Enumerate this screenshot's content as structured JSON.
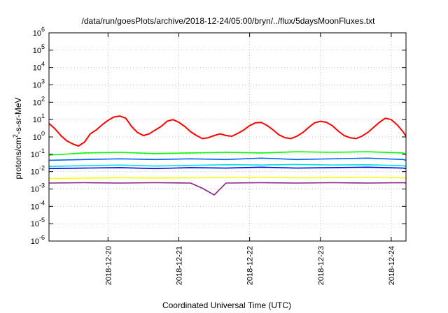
{
  "chart_data": {
    "type": "line",
    "title": "/data/run/goesPlots/archive/2018-12-24/05:00/bryn/../flux/5daysMoonFluxes.txt",
    "xlabel": "Coordinated Universal Time (UTC)",
    "ylabel": [
      "protons/cm",
      "2",
      "-s-sr-MeV"
    ],
    "yscale": "log",
    "ylim": [
      1e-06,
      1000000.0
    ],
    "xlim": [
      "2018-12-19T04:00",
      "2018-12-24T05:00"
    ],
    "y_ticks": [
      {
        "base": "10",
        "exp": "-6",
        "value": 1e-06
      },
      {
        "base": "10",
        "exp": "-5",
        "value": 1e-05
      },
      {
        "base": "10",
        "exp": "-4",
        "value": 0.0001
      },
      {
        "base": "10",
        "exp": "-3",
        "value": 0.001
      },
      {
        "base": "10",
        "exp": "-2",
        "value": 0.01
      },
      {
        "base": "10",
        "exp": "-1",
        "value": 0.1
      },
      {
        "base": "10",
        "exp": "0",
        "value": 1.0
      },
      {
        "base": "10",
        "exp": "1",
        "value": 10.0
      },
      {
        "base": "10",
        "exp": "2",
        "value": 100.0
      },
      {
        "base": "10",
        "exp": "3",
        "value": 1000.0
      },
      {
        "base": "10",
        "exp": "4",
        "value": 10000.0
      },
      {
        "base": "10",
        "exp": "5",
        "value": 100000.0
      },
      {
        "base": "10",
        "exp": "6",
        "value": 1000000.0
      }
    ],
    "x_ticks": [
      "2018-12-20",
      "2018-12-21",
      "2018-12-22",
      "2018-12-23",
      "2018-12-24"
    ],
    "grid": true,
    "legend": "none",
    "series": [
      {
        "color": "#ff0000",
        "x": [
          "2018-12-19T04:00",
          "2018-12-19T06:00",
          "2018-12-19T08:00",
          "2018-12-19T10:00",
          "2018-12-19T12:00",
          "2018-12-19T14:00",
          "2018-12-19T16:00",
          "2018-12-19T18:00",
          "2018-12-19T20:00",
          "2018-12-19T22:00",
          "2018-12-20T00:00",
          "2018-12-20T02:00",
          "2018-12-20T04:00",
          "2018-12-20T06:00",
          "2018-12-20T08:00",
          "2018-12-20T10:00",
          "2018-12-20T12:00",
          "2018-12-20T14:00",
          "2018-12-20T16:00",
          "2018-12-20T18:00",
          "2018-12-20T20:00",
          "2018-12-20T22:00",
          "2018-12-21T00:00",
          "2018-12-21T02:00",
          "2018-12-21T04:00",
          "2018-12-21T06:00",
          "2018-12-21T08:00",
          "2018-12-21T10:00",
          "2018-12-21T12:00",
          "2018-12-21T14:00",
          "2018-12-21T16:00",
          "2018-12-21T18:00",
          "2018-12-21T20:00",
          "2018-12-21T22:00",
          "2018-12-22T00:00",
          "2018-12-22T02:00",
          "2018-12-22T04:00",
          "2018-12-22T06:00",
          "2018-12-22T08:00",
          "2018-12-22T10:00",
          "2018-12-22T12:00",
          "2018-12-22T14:00",
          "2018-12-22T16:00",
          "2018-12-22T18:00",
          "2018-12-22T20:00",
          "2018-12-22T22:00",
          "2018-12-23T00:00",
          "2018-12-23T02:00",
          "2018-12-23T04:00",
          "2018-12-23T06:00",
          "2018-12-23T08:00",
          "2018-12-23T10:00",
          "2018-12-23T12:00",
          "2018-12-23T14:00",
          "2018-12-23T16:00",
          "2018-12-23T18:00",
          "2018-12-23T20:00",
          "2018-12-23T22:00",
          "2018-12-24T00:00",
          "2018-12-24T02:00",
          "2018-12-24T04:00",
          "2018-12-24T05:00"
        ],
        "y": [
          6,
          3,
          1.2,
          0.6,
          0.4,
          0.3,
          0.5,
          1.5,
          2.5,
          5,
          9,
          14,
          16,
          12,
          4,
          1.8,
          1.2,
          1.5,
          2.5,
          4,
          8,
          10,
          7,
          4,
          2,
          1.2,
          0.8,
          0.9,
          1.2,
          1.5,
          1.2,
          1.1,
          1.6,
          2.5,
          4.5,
          6.5,
          6.8,
          4.5,
          2.5,
          1.3,
          0.9,
          0.8,
          1.1,
          1.8,
          3.5,
          6.5,
          8,
          7,
          4.5,
          2.2,
          1.2,
          0.9,
          0.8,
          1.1,
          1.8,
          3.5,
          7,
          12,
          10,
          5,
          2,
          1.1
        ]
      },
      {
        "color": "#00ff00",
        "x": [
          "2018-12-19T04:00",
          "2018-12-19T16:00",
          "2018-12-20T04:00",
          "2018-12-20T16:00",
          "2018-12-21T04:00",
          "2018-12-21T16:00",
          "2018-12-22T04:00",
          "2018-12-22T16:00",
          "2018-12-23T04:00",
          "2018-12-23T16:00",
          "2018-12-24T04:00",
          "2018-12-24T05:00"
        ],
        "y": [
          0.09,
          0.12,
          0.13,
          0.11,
          0.12,
          0.13,
          0.12,
          0.14,
          0.13,
          0.14,
          0.12,
          0.1
        ]
      },
      {
        "color": "#00e0e0",
        "x": [
          "2018-12-19T04:00",
          "2018-12-19T16:00",
          "2018-12-20T04:00",
          "2018-12-20T16:00",
          "2018-12-21T04:00",
          "2018-12-21T16:00",
          "2018-12-22T04:00",
          "2018-12-22T16:00",
          "2018-12-23T04:00",
          "2018-12-23T16:00",
          "2018-12-24T04:00",
          "2018-12-24T05:00"
        ],
        "y": [
          0.02,
          0.022,
          0.024,
          0.021,
          0.023,
          0.025,
          0.024,
          0.026,
          0.024,
          0.025,
          0.022,
          0.02
        ]
      },
      {
        "color": "#0066ff",
        "x": [
          "2018-12-19T04:00",
          "2018-12-19T16:00",
          "2018-12-20T04:00",
          "2018-12-20T16:00",
          "2018-12-21T04:00",
          "2018-12-21T16:00",
          "2018-12-22T04:00",
          "2018-12-22T16:00",
          "2018-12-23T04:00",
          "2018-12-23T16:00",
          "2018-12-24T04:00",
          "2018-12-24T05:00"
        ],
        "y": [
          0.045,
          0.05,
          0.055,
          0.05,
          0.055,
          0.05,
          0.06,
          0.05,
          0.055,
          0.06,
          0.05,
          0.045
        ]
      },
      {
        "color": "#0000ee",
        "x": [
          "2018-12-19T04:00",
          "2018-12-19T16:00",
          "2018-12-20T04:00",
          "2018-12-20T16:00",
          "2018-12-21T04:00",
          "2018-12-21T16:00",
          "2018-12-22T04:00",
          "2018-12-22T16:00",
          "2018-12-23T04:00",
          "2018-12-23T16:00",
          "2018-12-24T04:00",
          "2018-12-24T05:00"
        ],
        "y": [
          0.015,
          0.016,
          0.017,
          0.015,
          0.017,
          0.016,
          0.018,
          0.016,
          0.017,
          0.018,
          0.016,
          0.015
        ]
      },
      {
        "color": "#ffff00",
        "x": [
          "2018-12-19T04:00",
          "2018-12-19T16:00",
          "2018-12-20T04:00",
          "2018-12-20T16:00",
          "2018-12-21T04:00",
          "2018-12-21T16:00",
          "2018-12-22T04:00",
          "2018-12-22T16:00",
          "2018-12-23T04:00",
          "2018-12-23T16:00",
          "2018-12-24T04:00",
          "2018-12-24T05:00"
        ],
        "y": [
          0.004,
          0.0042,
          0.0045,
          0.0043,
          0.0044,
          0.0045,
          0.0046,
          0.0044,
          0.0045,
          0.0046,
          0.0044,
          0.0043
        ]
      },
      {
        "color": "#882288",
        "x": [
          "2018-12-19T04:00",
          "2018-12-19T16:00",
          "2018-12-20T04:00",
          "2018-12-20T16:00",
          "2018-12-21T04:00",
          "2018-12-21T08:00",
          "2018-12-21T12:00",
          "2018-12-21T16:00",
          "2018-12-22T04:00",
          "2018-12-22T16:00",
          "2018-12-23T04:00",
          "2018-12-23T16:00",
          "2018-12-24T04:00",
          "2018-12-24T05:00"
        ],
        "y": [
          0.0022,
          0.0023,
          0.0022,
          0.0023,
          0.0022,
          0.0011,
          0.00045,
          0.0022,
          0.0023,
          0.0022,
          0.0023,
          0.0022,
          0.0023,
          0.0022
        ]
      }
    ]
  }
}
